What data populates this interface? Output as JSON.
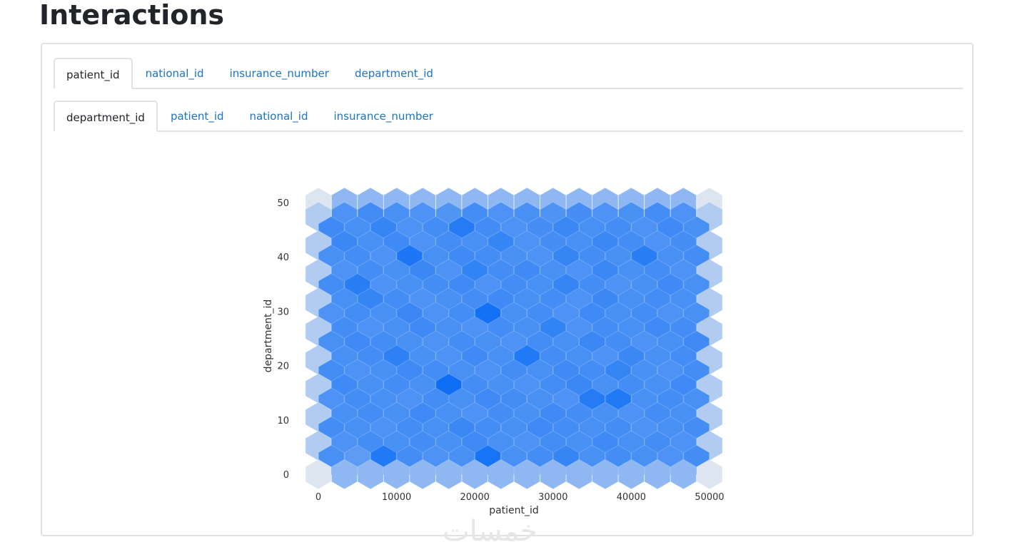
{
  "page": {
    "title": "Interactions"
  },
  "tabs_primary": [
    {
      "label": "patient_id",
      "active": true
    },
    {
      "label": "national_id",
      "active": false
    },
    {
      "label": "insurance_number",
      "active": false
    },
    {
      "label": "department_id",
      "active": false
    }
  ],
  "tabs_secondary": [
    {
      "label": "department_id",
      "active": true
    },
    {
      "label": "patient_id",
      "active": false
    },
    {
      "label": "national_id",
      "active": false
    },
    {
      "label": "insurance_number",
      "active": false
    }
  ],
  "watermark": "خمسات",
  "chart_data": {
    "type": "heatmap",
    "subtype": "hexbin",
    "xlabel": "patient_id",
    "ylabel": "department_id",
    "xlim": [
      0,
      50000
    ],
    "ylim": [
      0,
      50
    ],
    "x_ticks": [
      0,
      10000,
      20000,
      30000,
      40000,
      50000
    ],
    "x_tick_labels": [
      "0",
      "10000",
      "20000",
      "30000",
      "40000",
      "50000"
    ],
    "y_ticks": [
      0,
      10,
      20,
      30,
      40,
      50
    ],
    "y_tick_labels": [
      "0",
      "10",
      "20",
      "30",
      "40",
      "50"
    ],
    "grid": false,
    "color_low": "#e8ebf0",
    "color_high": "#0a6cf5",
    "hex_columns": 16,
    "density": [
      [
        0.05,
        0.4,
        0.4,
        0.4,
        0.4,
        0.4,
        0.4,
        0.4,
        0.4,
        0.4,
        0.4,
        0.4,
        0.4,
        0.4,
        0.4,
        0.05
      ],
      [
        0.25,
        0.7,
        0.75,
        0.72,
        0.7,
        0.68,
        0.74,
        0.7,
        0.72,
        0.69,
        0.73,
        0.7,
        0.71,
        0.74,
        0.7,
        0.25
      ],
      [
        0.76,
        0.72,
        0.8,
        0.7,
        0.74,
        0.88,
        0.75,
        0.7,
        0.73,
        0.78,
        0.72,
        0.74,
        0.7,
        0.76,
        0.72
      ],
      [
        0.25,
        0.78,
        0.72,
        0.76,
        0.7,
        0.74,
        0.72,
        0.8,
        0.7,
        0.73,
        0.72,
        0.78,
        0.74,
        0.7,
        0.73,
        0.25
      ],
      [
        0.72,
        0.74,
        0.7,
        0.92,
        0.72,
        0.76,
        0.74,
        0.72,
        0.7,
        0.8,
        0.74,
        0.72,
        0.86,
        0.72,
        0.74
      ],
      [
        0.25,
        0.7,
        0.74,
        0.72,
        0.78,
        0.7,
        0.82,
        0.74,
        0.76,
        0.72,
        0.7,
        0.78,
        0.72,
        0.74,
        0.7,
        0.25
      ],
      [
        0.74,
        0.86,
        0.7,
        0.72,
        0.74,
        0.76,
        0.7,
        0.74,
        0.72,
        0.8,
        0.74,
        0.7,
        0.72,
        0.76,
        0.72
      ],
      [
        0.25,
        0.72,
        0.8,
        0.74,
        0.7,
        0.72,
        0.74,
        0.76,
        0.72,
        0.74,
        0.7,
        0.78,
        0.72,
        0.74,
        0.72,
        0.25
      ],
      [
        0.7,
        0.74,
        0.72,
        0.78,
        0.7,
        0.74,
        0.96,
        0.72,
        0.74,
        0.7,
        0.76,
        0.72,
        0.74,
        0.7,
        0.72
      ],
      [
        0.25,
        0.74,
        0.7,
        0.72,
        0.76,
        0.72,
        0.7,
        0.74,
        0.72,
        0.82,
        0.7,
        0.74,
        0.72,
        0.76,
        0.74,
        0.25
      ],
      [
        0.72,
        0.76,
        0.74,
        0.72,
        0.7,
        0.74,
        0.72,
        0.7,
        0.74,
        0.72,
        0.78,
        0.74,
        0.7,
        0.72,
        0.76
      ],
      [
        0.25,
        0.72,
        0.74,
        0.84,
        0.72,
        0.7,
        0.76,
        0.72,
        0.9,
        0.74,
        0.72,
        0.7,
        0.78,
        0.72,
        0.74,
        0.25
      ],
      [
        0.74,
        0.7,
        0.72,
        0.76,
        0.74,
        0.72,
        0.7,
        0.74,
        0.72,
        0.76,
        0.74,
        0.8,
        0.72,
        0.7,
        0.74
      ],
      [
        0.25,
        0.76,
        0.72,
        0.74,
        0.72,
        0.98,
        0.74,
        0.72,
        0.7,
        0.74,
        0.78,
        0.72,
        0.74,
        0.72,
        0.76,
        0.25
      ],
      [
        0.7,
        0.74,
        0.72,
        0.7,
        0.74,
        0.72,
        0.76,
        0.74,
        0.72,
        0.7,
        0.88,
        0.9,
        0.72,
        0.74,
        0.72
      ],
      [
        0.25,
        0.72,
        0.74,
        0.72,
        0.76,
        0.72,
        0.7,
        0.74,
        0.72,
        0.76,
        0.74,
        0.72,
        0.7,
        0.74,
        0.72,
        0.25
      ],
      [
        0.74,
        0.72,
        0.7,
        0.74,
        0.72,
        0.78,
        0.74,
        0.72,
        0.76,
        0.74,
        0.72,
        0.74,
        0.7,
        0.72,
        0.74
      ],
      [
        0.25,
        0.7,
        0.74,
        0.72,
        0.74,
        0.72,
        0.76,
        0.72,
        0.7,
        0.74,
        0.72,
        0.76,
        0.72,
        0.74,
        0.7,
        0.25
      ],
      [
        0.72,
        0.62,
        0.9,
        0.74,
        0.7,
        0.72,
        0.94,
        0.72,
        0.74,
        0.8,
        0.72,
        0.74,
        0.72,
        0.7,
        0.74
      ],
      [
        0.05,
        0.4,
        0.4,
        0.4,
        0.4,
        0.4,
        0.4,
        0.4,
        0.4,
        0.4,
        0.4,
        0.4,
        0.4,
        0.4,
        0.4,
        0.05
      ]
    ]
  }
}
